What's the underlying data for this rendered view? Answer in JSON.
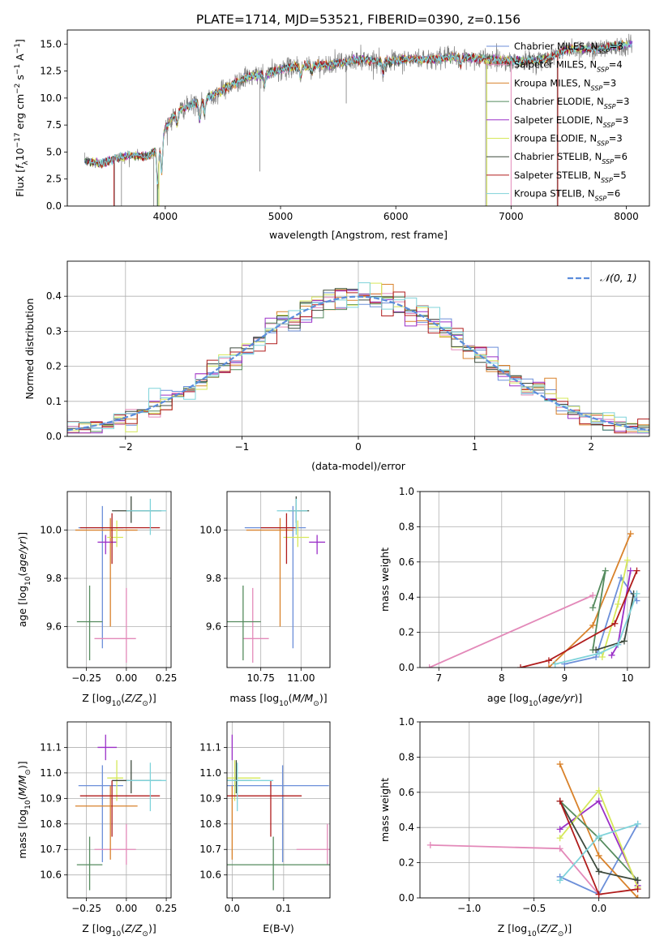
{
  "figure_title": "PLATE=1714, MJD=53521, FIBERID=0390, z=0.156",
  "colors": {
    "data": "#7f7f7f",
    "Chabrier MILES": "#6c8fd9",
    "Salpeter MILES": "#e389b9",
    "Kroupa MILES": "#d9822b",
    "Chabrier ELODIE": "#558b5e",
    "Salpeter ELODIE": "#9b30c8",
    "Kroupa ELODIE": "#d6e85a",
    "Chabrier STELIB": "#3d4a3d",
    "Salpeter STELIB": "#b01c1c",
    "Kroupa STELIB": "#7fd3da",
    "normal": "#5b8ddb"
  },
  "legend_models": [
    {
      "key": "Chabrier MILES",
      "label": "Chabrier MILES, N",
      "nssp": "3"
    },
    {
      "key": "Salpeter MILES",
      "label": "Salpeter MILES, N",
      "nssp": "4"
    },
    {
      "key": "Kroupa MILES",
      "label": "Kroupa MILES, N",
      "nssp": "3"
    },
    {
      "key": "Chabrier ELODIE",
      "label": "Chabrier ELODIE, N",
      "nssp": "3"
    },
    {
      "key": "Salpeter ELODIE",
      "label": "Salpeter ELODIE, N",
      "nssp": "3"
    },
    {
      "key": "Kroupa ELODIE",
      "label": "Kroupa ELODIE, N",
      "nssp": "3"
    },
    {
      "key": "Chabrier STELIB",
      "label": "Chabrier STELIB, N",
      "nssp": "6"
    },
    {
      "key": "Salpeter STELIB",
      "label": "Salpeter STELIB, N",
      "nssp": "5"
    },
    {
      "key": "Kroupa STELIB",
      "label": "Kroupa STELIB, N",
      "nssp": "6"
    }
  ],
  "legend_sub": "SSP",
  "normal_legend": "𝒩(0, 1)",
  "chart_data": [
    {
      "id": "spectrum",
      "type": "line",
      "xlabel": "wavelength [Angstrom, rest frame]",
      "ylabel": "Flux [f_λ 10^-17 erg cm^-2 s^-1 A^-1]",
      "xlim": [
        3150,
        8200
      ],
      "ylim": [
        0,
        16.3
      ],
      "xticks": [
        4000,
        5000,
        6000,
        7000,
        8000
      ],
      "yticks": [
        0.0,
        2.5,
        5.0,
        7.5,
        10.0,
        12.5,
        15.0
      ],
      "ytick_labels": [
        "0.0",
        "2.5",
        "5.0",
        "7.5",
        "10.0",
        "12.5",
        "15.0"
      ],
      "continuum_anchors": {
        "wavelength": [
          3300,
          3450,
          3550,
          3700,
          3850,
          3950,
          4000,
          4100,
          4300,
          4500,
          4700,
          4900,
          5100,
          5300,
          5500,
          5700,
          5900,
          6100,
          6300,
          6500,
          6700,
          6900,
          7100,
          7300,
          7500,
          7700,
          7900,
          8050
        ],
        "flux": [
          4.2,
          3.9,
          4.4,
          4.7,
          4.6,
          5.6,
          7.2,
          8.8,
          9.6,
          10.8,
          11.9,
          12.3,
          12.9,
          13.0,
          13.2,
          13.6,
          13.3,
          13.6,
          13.6,
          13.8,
          13.7,
          13.5,
          13.4,
          13.6,
          14.6,
          14.5,
          14.8,
          15.0
        ]
      },
      "absorption_lines": [
        {
          "wavelength": 3934,
          "depth": 0.7
        },
        {
          "wavelength": 3969,
          "depth": 0.6
        },
        {
          "wavelength": 4102,
          "depth": 0.25
        },
        {
          "wavelength": 4300,
          "depth": 0.3
        },
        {
          "wavelength": 4340,
          "depth": 0.25
        },
        {
          "wavelength": 4861,
          "depth": 0.2
        },
        {
          "wavelength": 5175,
          "depth": 0.2
        },
        {
          "wavelength": 5270,
          "depth": 0.12
        },
        {
          "wavelength": 5890,
          "depth": 0.18
        },
        {
          "wavelength": 6563,
          "depth": 0.15
        }
      ],
      "glitches": [
        {
          "wavelength": 3560,
          "min": 0.0
        },
        {
          "wavelength": 3620,
          "min": 0.0
        },
        {
          "wavelength": 3900,
          "min": 0.0
        },
        {
          "wavelength": 3930,
          "min": 0.0
        },
        {
          "wavelength": 4820,
          "min": 3.2
        },
        {
          "wavelength": 5570,
          "min": 9.5
        },
        {
          "wavelength": 6780,
          "min": 0.0
        },
        {
          "wavelength": 7400,
          "min": 0.0
        }
      ]
    },
    {
      "id": "residuals",
      "type": "step",
      "xlabel": "(data-model)/error",
      "ylabel": "Normed distribution",
      "xlim": [
        -2.5,
        2.5
      ],
      "ylim": [
        0,
        0.5
      ],
      "xticks": [
        -2,
        -1,
        0,
        1,
        2
      ],
      "xtick_labels": [
        "−2",
        "−1",
        "0",
        "1",
        "2"
      ],
      "yticks": [
        0.0,
        0.1,
        0.2,
        0.3,
        0.4
      ],
      "ytick_labels": [
        "0.0",
        "0.1",
        "0.2",
        "0.3",
        "0.4"
      ],
      "bin_width": 0.1,
      "normal": {
        "mu": 0,
        "sigma": 1
      }
    },
    {
      "id": "age_vs_Z",
      "type": "errorbar",
      "xlabel": "Z [log10(Z/Z⊙)]",
      "ylabel": "age [log10(age/yr)]",
      "xlim": [
        -0.37,
        0.28
      ],
      "ylim": [
        9.43,
        10.16
      ],
      "xticks": [
        -0.25,
        0.0,
        0.25
      ],
      "xtick_labels": [
        "−0.25",
        "0.00",
        "0.25"
      ],
      "yticks": [
        9.6,
        9.8,
        10.0
      ],
      "ytick_labels": [
        "9.6",
        "9.8",
        "10.0"
      ]
    },
    {
      "id": "age_vs_mass",
      "type": "errorbar",
      "xlabel": "mass [log10(M/M⊙)]",
      "ylabel": "",
      "xlim": [
        10.54,
        11.18
      ],
      "ylim": [
        9.43,
        10.16
      ],
      "xticks": [
        10.75,
        11.0
      ],
      "xtick_labels": [
        "10.75",
        "11.00"
      ],
      "yticks": [
        9.6,
        9.8,
        10.0
      ],
      "ytick_labels": [
        "9.6",
        "9.8",
        "10.0"
      ]
    },
    {
      "id": "weight_vs_age",
      "type": "line",
      "xlabel": "age [log10(age/yr)]",
      "ylabel": "mass weight",
      "xlim": [
        6.7,
        10.35
      ],
      "ylim": [
        0,
        1
      ],
      "xticks": [
        7,
        8,
        9,
        10
      ],
      "xtick_labels": [
        "7",
        "8",
        "9",
        "10"
      ],
      "yticks": [
        0.0,
        0.2,
        0.4,
        0.6,
        0.8,
        1.0
      ],
      "ytick_labels": [
        "0.0",
        "0.2",
        "0.4",
        "0.6",
        "0.8",
        "1.0"
      ]
    },
    {
      "id": "mass_vs_Z",
      "type": "errorbar",
      "xlabel": "Z [log10(Z/Z⊙)]",
      "ylabel": "mass [log10(M/M⊙)]",
      "xlim": [
        -0.37,
        0.28
      ],
      "ylim": [
        10.51,
        11.2
      ],
      "xticks": [
        -0.25,
        0.0,
        0.25
      ],
      "xtick_labels": [
        "−0.25",
        "0.00",
        "0.25"
      ],
      "yticks": [
        10.6,
        10.7,
        10.8,
        10.9,
        11.0,
        11.1
      ],
      "ytick_labels": [
        "10.6",
        "10.7",
        "10.8",
        "10.9",
        "11.0",
        "11.1"
      ]
    },
    {
      "id": "mass_vs_ebv",
      "type": "errorbar",
      "xlabel": "E(B-V)",
      "ylabel": "",
      "xlim": [
        -0.01,
        0.19
      ],
      "ylim": [
        10.51,
        11.2
      ],
      "xticks": [
        0.0,
        0.1
      ],
      "xtick_labels": [
        "0.0",
        "0.1"
      ],
      "yticks": [
        10.6,
        10.7,
        10.8,
        10.9,
        11.0,
        11.1
      ],
      "ytick_labels": [
        "10.6",
        "10.7",
        "10.8",
        "10.9",
        "11.0",
        "11.1"
      ]
    },
    {
      "id": "weight_vs_Z",
      "type": "line",
      "xlabel": "Z [log10(Z/Z⊙)]",
      "ylabel": "mass weight",
      "xlim": [
        -1.38,
        0.39
      ],
      "ylim": [
        0,
        1
      ],
      "xticks": [
        -1.0,
        -0.5,
        0.0
      ],
      "xtick_labels": [
        "−1.0",
        "−0.5",
        "0.0"
      ],
      "yticks": [
        0.0,
        0.2,
        0.4,
        0.6,
        0.8,
        1.0
      ],
      "ytick_labels": [
        "0.0",
        "0.2",
        "0.4",
        "0.6",
        "0.8",
        "1.0"
      ]
    }
  ],
  "models": [
    {
      "key": "Chabrier MILES",
      "Z": -0.15,
      "Zerr": [
        0.15,
        0.13
      ],
      "age": 10.01,
      "ageerr": [
        0.5,
        0.09
      ],
      "mass": 10.95,
      "masserr": [
        0.3,
        0.08
      ],
      "ebv": 0.098,
      "ebverr": [
        0.23,
        0.09
      ],
      "hist_noise": 0.06,
      "wt_age": [
        [
          9.0,
          0.02
        ],
        [
          9.5,
          0.06
        ],
        [
          9.9,
          0.51
        ],
        [
          10.15,
          0.38
        ]
      ],
      "wt_Z": [
        [
          -0.3,
          0.12
        ],
        [
          0.0,
          0.02
        ],
        [
          0.3,
          0.42
        ]
      ]
    },
    {
      "key": "Salpeter MILES",
      "Z": 0.0,
      "Zerr": [
        0.2,
        0.06
      ],
      "age": 9.55,
      "ageerr": [
        0.1,
        0.21
      ],
      "mass": 10.7,
      "masserr": [
        0.06,
        0.1
      ],
      "ebv": 0.185,
      "ebverr": [
        0.06,
        0.06
      ],
      "hist_noise": 0.06,
      "wt_age": [
        [
          6.85,
          0.0
        ],
        [
          9.45,
          0.41
        ]
      ],
      "wt_Z": [
        [
          -1.3,
          0.3
        ],
        [
          -0.3,
          0.28
        ],
        [
          0.0,
          0.02
        ]
      ]
    },
    {
      "key": "Kroupa MILES",
      "Z": -0.1,
      "Zerr": [
        0.22,
        0.17
      ],
      "age": 10.0,
      "ageerr": [
        0.4,
        0.05
      ],
      "mass": 10.87,
      "masserr": [
        0.21,
        0.08
      ],
      "ebv": 0.0,
      "ebverr": [
        0,
        0
      ],
      "hist_noise": 0.07,
      "wt_age": [
        [
          8.75,
          0.0
        ],
        [
          9.45,
          0.24
        ],
        [
          10.05,
          0.76
        ]
      ],
      "wt_Z": [
        [
          -0.3,
          0.76
        ],
        [
          0.0,
          0.24
        ],
        [
          0.3,
          0.0
        ]
      ]
    },
    {
      "key": "Chabrier ELODIE",
      "Z": -0.23,
      "Zerr": [
        0.08,
        0.08
      ],
      "age": 9.62,
      "ageerr": [
        0.16,
        0.15
      ],
      "mass": 10.64,
      "masserr": [
        0.1,
        0.11
      ],
      "ebv": 0.08,
      "ebverr": [
        0.1,
        0.11
      ],
      "hist_noise": 0.05,
      "wt_age": [
        [
          9.45,
          0.1
        ],
        [
          9.65,
          0.55
        ],
        [
          9.45,
          0.34
        ]
      ],
      "wt_Z": [
        [
          -0.3,
          0.55
        ],
        [
          0.0,
          0.34
        ],
        [
          0.3,
          0.1
        ]
      ]
    },
    {
      "key": "Salpeter ELODIE",
      "Z": -0.13,
      "Zerr": [
        0.05,
        0.07
      ],
      "age": 9.95,
      "ageerr": [
        0.05,
        0.03
      ],
      "mass": 11.1,
      "masserr": [
        0.05,
        0.05
      ],
      "ebv": 0.0,
      "ebverr": [
        0,
        0
      ],
      "hist_noise": 0.07,
      "wt_age": [
        [
          9.75,
          0.07
        ],
        [
          9.85,
          0.13
        ],
        [
          10.05,
          0.55
        ]
      ],
      "wt_Z": [
        [
          -0.3,
          0.39
        ],
        [
          0.0,
          0.55
        ],
        [
          0.3,
          0.07
        ]
      ]
    },
    {
      "key": "Kroupa ELODIE",
      "Z": -0.06,
      "Zerr": [
        0.06,
        0.04
      ],
      "age": 9.97,
      "ageerr": [
        0.04,
        0.07
      ],
      "mass": 10.98,
      "masserr": [
        0.09,
        0.07
      ],
      "ebv": 0.005,
      "ebverr": [
        0.1,
        0.05
      ],
      "hist_noise": 0.06,
      "wt_age": [
        [
          9.6,
          0.06
        ],
        [
          9.85,
          0.36
        ],
        [
          10.0,
          0.61
        ]
      ],
      "wt_Z": [
        [
          -0.3,
          0.34
        ],
        [
          0.0,
          0.61
        ],
        [
          0.3,
          0.06
        ]
      ]
    },
    {
      "key": "Chabrier STELIB",
      "Z": 0.03,
      "Zerr": [
        0.12,
        0.19
      ],
      "age": 10.08,
      "ageerr": [
        0.05,
        0.06
      ],
      "mass": 10.97,
      "masserr": [
        0.05,
        0.08
      ],
      "ebv": 0.008,
      "ebverr": [
        0.04,
        0.03
      ],
      "hist_noise": 0.03,
      "wt_age": [
        [
          9.5,
          0.1
        ],
        [
          9.95,
          0.15
        ],
        [
          10.1,
          0.42
        ]
      ],
      "wt_Z": [
        [
          -0.3,
          0.55
        ],
        [
          0.0,
          0.15
        ],
        [
          0.3,
          0.1
        ]
      ]
    },
    {
      "key": "Salpeter STELIB",
      "Z": -0.09,
      "Zerr": [
        0.2,
        0.3
      ],
      "age": 10.01,
      "ageerr": [
        0.15,
        0.06
      ],
      "mass": 10.91,
      "masserr": [
        0.16,
        0.06
      ],
      "ebv": 0.075,
      "ebverr": [
        0.15,
        0.06
      ],
      "hist_noise": 0.07,
      "wt_age": [
        [
          8.3,
          0.0
        ],
        [
          8.75,
          0.04
        ],
        [
          9.8,
          0.25
        ],
        [
          10.15,
          0.55
        ]
      ],
      "wt_Z": [
        [
          -0.3,
          0.55
        ],
        [
          0.0,
          0.02
        ],
        [
          0.3,
          0.05
        ]
      ]
    },
    {
      "key": "Kroupa STELIB",
      "Z": 0.15,
      "Zerr": [
        0.15,
        0.1
      ],
      "age": 10.08,
      "ageerr": [
        0.1,
        0.05
      ],
      "mass": 10.97,
      "masserr": [
        0.12,
        0.07
      ],
      "ebv": 0.01,
      "ebverr": [
        0.18,
        0.07
      ],
      "hist_noise": 0.07,
      "wt_age": [
        [
          8.85,
          0.02
        ],
        [
          9.55,
          0.08
        ],
        [
          9.85,
          0.13
        ],
        [
          10.15,
          0.42
        ]
      ],
      "wt_Z": [
        [
          -0.3,
          0.1
        ],
        [
          0.0,
          0.35
        ],
        [
          0.3,
          0.42
        ]
      ]
    }
  ]
}
